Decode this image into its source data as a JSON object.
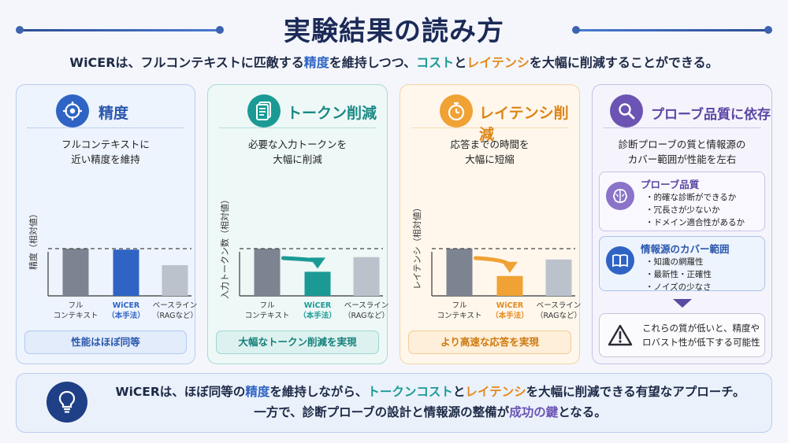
{
  "title": "実験結果の読み方",
  "subtitle": {
    "p1": "WiCERは、フルコンテキストに匹敵する",
    "h1": "精度",
    "p2": "を維持しつつ、",
    "h2": "コスト",
    "p3": "と",
    "h3": "レイテンシ",
    "p4": "を大幅に削減することができる。"
  },
  "colors": {
    "blue": "#2f64c4",
    "teal": "#1b9a95",
    "orange": "#f0a235",
    "purple": "#6b54b3",
    "gray_dark": "#7d8491",
    "gray_light": "#bcc2cc"
  },
  "cards": [
    {
      "title": "精度",
      "icon": "target-icon",
      "desc": [
        "フルコンテキストに",
        "近い精度を維持"
      ],
      "ylabel": "精度（相対値）",
      "pill": "性能はほぼ同等"
    },
    {
      "title": "トークン削減",
      "icon": "document-icon",
      "desc": [
        "必要な入力トークンを",
        "大幅に削減"
      ],
      "ylabel": "入力トークン数（相対値）",
      "pill": "大幅なトークン削減を実現"
    },
    {
      "title": "レイテンシ削減",
      "icon": "stopwatch-icon",
      "desc": [
        "応答までの時間を",
        "大幅に短縮"
      ],
      "ylabel": "レイテンシ（相対値）",
      "pill": "より高速な応答を実現"
    },
    {
      "title": "プローブ品質に依存",
      "icon": "search-icon",
      "desc": [
        "診断プローブの質と情報源の",
        "カバー範囲が性能を左右"
      ],
      "probe_box": {
        "title": "プローブ品質",
        "icon": "brain-icon",
        "items": [
          "的確な診断ができるか",
          "冗長さが少ないか",
          "ドメイン適合性があるか"
        ]
      },
      "source_box": {
        "title": "情報源のカバー範囲",
        "icon": "book-icon",
        "items": [
          "知識の網羅性",
          "最新性・正確性",
          "ノイズの少なさ"
        ]
      },
      "warning": [
        "これらの質が低いと、精度や",
        "ロバスト性が低下する可能性"
      ]
    }
  ],
  "categories": [
    [
      "フル",
      "コンテキスト"
    ],
    [
      "WiCER",
      "（本手法）"
    ],
    [
      "ベースライン",
      "（RAGなど）"
    ]
  ],
  "chart_data": [
    {
      "type": "bar",
      "title": "精度",
      "ylabel": "精度（相対値）",
      "categories": [
        "フルコンテキスト",
        "WiCER（本手法）",
        "ベースライン（RAGなど）"
      ],
      "values": [
        1.0,
        0.98,
        0.65
      ],
      "reference_line": 1.0,
      "ylim": [
        0,
        1.1
      ]
    },
    {
      "type": "bar",
      "title": "トークン削減",
      "ylabel": "入力トークン数（相対値）",
      "categories": [
        "フルコンテキスト",
        "WiCER（本手法）",
        "ベースライン（RAGなど）"
      ],
      "values": [
        1.0,
        0.51,
        0.82
      ],
      "reference_line": 1.0,
      "ylim": [
        0,
        1.1
      ]
    },
    {
      "type": "bar",
      "title": "レイテンシ削減",
      "ylabel": "レイテンシ（相対値）",
      "categories": [
        "フルコンテキスト",
        "WiCER（本手法）",
        "ベースライン（RAGなど）"
      ],
      "values": [
        1.0,
        0.42,
        0.77
      ],
      "reference_line": 1.0,
      "ylim": [
        0,
        1.1
      ]
    }
  ],
  "bottom": {
    "line1": {
      "p1": "WiCERは、ほぼ同等の",
      "h1": "精度",
      "p2": "を維持しながら、",
      "h2": "トークンコスト",
      "p3": "と",
      "h3": "レイテンシ",
      "p4": "を大幅に削減できる有望なアプローチ。"
    },
    "line2": {
      "p1": "一方で、診断プローブの設計と情報源の整備が",
      "h1": "成功の鍵",
      "p2": "となる。"
    }
  }
}
